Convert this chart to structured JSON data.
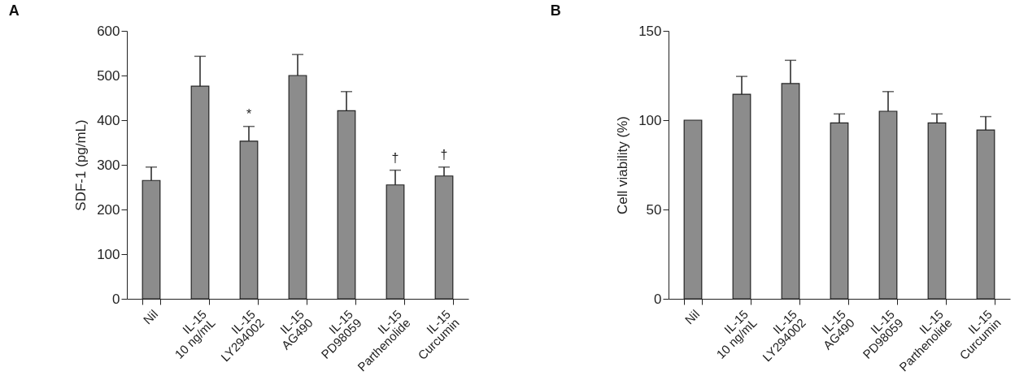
{
  "chart_data": [
    {
      "type": "bar",
      "title": "A",
      "ylabel": "SDF-1 (pg/mL)",
      "categories": [
        "Nil",
        "IL-15\n10 ng/mL",
        "IL-15\nLY294002",
        "IL-15\nAG490",
        "IL-15\nPD98059",
        "IL-15\nParthenolide",
        "IL-15\nCurcumin"
      ],
      "values": [
        265,
        476,
        353,
        500,
        421,
        255,
        275
      ],
      "errors": [
        30,
        67,
        33,
        47,
        43,
        33,
        20
      ],
      "color": "#8c8c8c",
      "ylim": [
        0,
        600
      ],
      "yticks": [
        0,
        100,
        200,
        300,
        400,
        500,
        600
      ],
      "grid": false,
      "annotations": [
        {
          "text": "*",
          "x": "IL-15\nLY294002",
          "y": 386
        },
        {
          "text": "†",
          "x": "IL-15\nParthenolide",
          "y": 288
        },
        {
          "text": "†",
          "x": "IL-15\nCurcumin",
          "y": 295
        }
      ]
    },
    {
      "type": "bar",
      "title": "B",
      "ylabel": "Cell viability (%)",
      "categories": [
        "Nil",
        "IL-15\n10 ng/mL",
        "IL-15\nLY294002",
        "IL-15\nAG490",
        "IL-15\nPD98059",
        "IL-15\nParthenolide",
        "IL-15\nCurcumin"
      ],
      "values": [
        100,
        114.5,
        120.5,
        98.5,
        105,
        98.5,
        94.5
      ],
      "errors": [
        null,
        10,
        13,
        5,
        11,
        5,
        7.5
      ],
      "color": "#8c8c8c",
      "ylim": [
        0,
        150
      ],
      "yticks": [
        0,
        50,
        100,
        150
      ],
      "grid": false
    }
  ]
}
